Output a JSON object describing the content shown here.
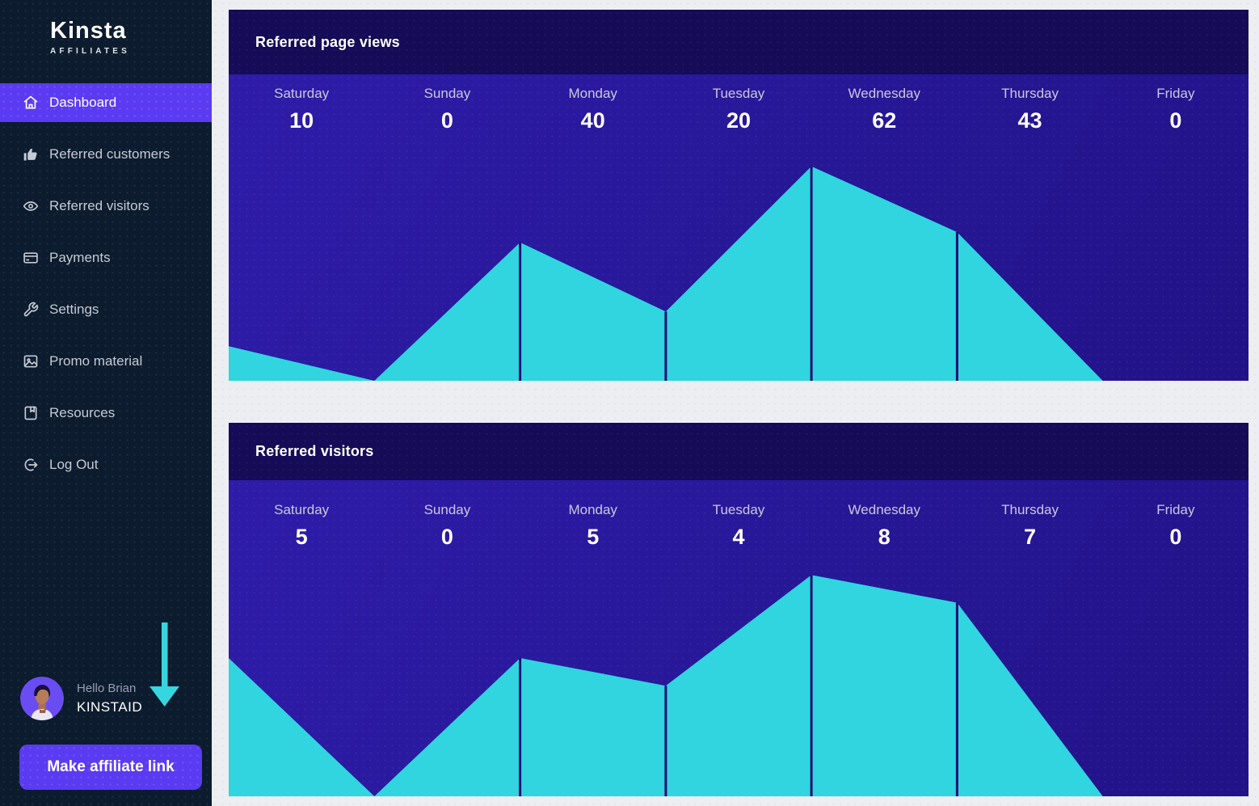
{
  "brand": {
    "name": "Kinsta",
    "subtitle": "AFFILIATES"
  },
  "sidebar": {
    "items": [
      {
        "label": "Dashboard",
        "icon": "home-icon",
        "active": true
      },
      {
        "label": "Referred customers",
        "icon": "thumbs-up-icon",
        "active": false
      },
      {
        "label": "Referred visitors",
        "icon": "eye-icon",
        "active": false
      },
      {
        "label": "Payments",
        "icon": "credit-card-icon",
        "active": false
      },
      {
        "label": "Settings",
        "icon": "wrench-icon",
        "active": false
      },
      {
        "label": "Promo material",
        "icon": "image-icon",
        "active": false
      },
      {
        "label": "Resources",
        "icon": "book-icon",
        "active": false
      },
      {
        "label": "Log Out",
        "icon": "logout-icon",
        "active": false
      }
    ],
    "user": {
      "greeting": "Hello Brian",
      "username": "KINSTAID"
    },
    "cta": {
      "label": "Make affiliate link"
    }
  },
  "colors": {
    "accent_purple": "#5a3bf2",
    "chart_cyan": "#30d5e0",
    "chart_plot_bg": "#261796",
    "chart_header_bg": "#150b57",
    "sidebar_bg": "#0c1b2d",
    "page_bg": "#edeef2",
    "marker_line": "#1a0e72",
    "arrow_cyan": "#35d6e0"
  },
  "chart_data": [
    {
      "type": "area",
      "title": "Referred page views",
      "categories": [
        "Saturday",
        "Sunday",
        "Monday",
        "Tuesday",
        "Wednesday",
        "Thursday",
        "Friday"
      ],
      "values": [
        10,
        0,
        40,
        20,
        62,
        43,
        0
      ],
      "xlabel": "",
      "ylabel": "",
      "ylim": [
        0,
        88.6
      ],
      "grid": false,
      "legend_position": "none",
      "area_color": "#30d5e0"
    },
    {
      "type": "area",
      "title": "Referred visitors",
      "categories": [
        "Saturday",
        "Sunday",
        "Monday",
        "Tuesday",
        "Wednesday",
        "Thursday",
        "Friday"
      ],
      "values": [
        5,
        0,
        5,
        4,
        8,
        7,
        0
      ],
      "xlabel": "",
      "ylabel": "",
      "ylim": [
        0,
        11.43
      ],
      "grid": false,
      "legend_position": "none",
      "area_color": "#30d5e0"
    }
  ]
}
